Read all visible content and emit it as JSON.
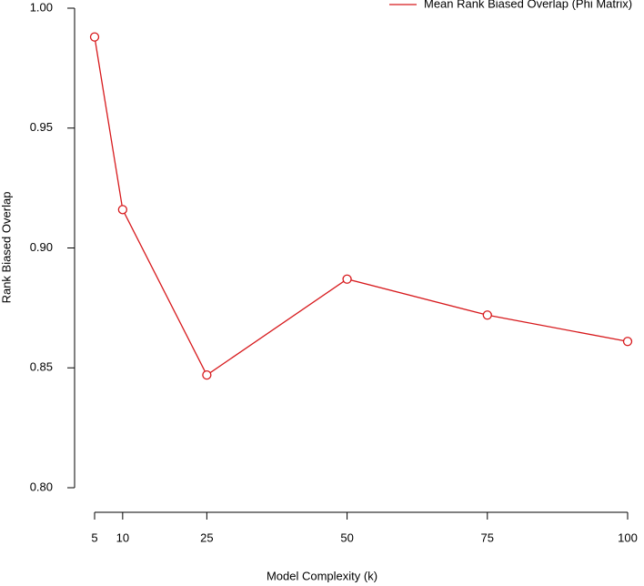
{
  "chart_data": {
    "type": "line",
    "x_label": "Model Complexity (k)",
    "y_label": "Rank Biased Overlap",
    "x": [
      5,
      10,
      25,
      50,
      75,
      100
    ],
    "series": [
      {
        "name": "Mean Rank Biased Overlap (Phi Matrix)",
        "color": "#d7191c",
        "values": [
          0.988,
          0.916,
          0.847,
          0.887,
          0.872,
          0.861
        ]
      }
    ],
    "xlim": [
      5,
      100
    ],
    "xticks": [
      5,
      10,
      25,
      50,
      75,
      100
    ],
    "ylim": [
      0.8,
      1.0
    ],
    "yticks": [
      {
        "value": 0.8,
        "label": "0.80"
      },
      {
        "value": 0.85,
        "label": "0.85"
      },
      {
        "value": 0.9,
        "label": "0.90"
      },
      {
        "value": 0.95,
        "label": "0.95"
      },
      {
        "value": 1.0,
        "label": "1.00"
      }
    ],
    "legend": "top-right",
    "markers": "open-circle"
  }
}
